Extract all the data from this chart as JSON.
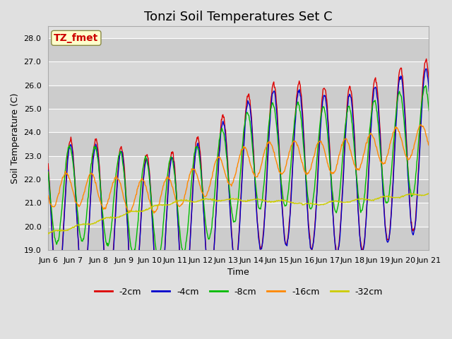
{
  "title": "Tonzi Soil Temperatures Set C",
  "xlabel": "Time",
  "ylabel": "Soil Temperature (C)",
  "ylim": [
    19.0,
    28.5
  ],
  "yticks": [
    19.0,
    20.0,
    21.0,
    22.0,
    23.0,
    24.0,
    25.0,
    26.0,
    27.0,
    28.0
  ],
  "series_colors": [
    "#dd0000",
    "#0000cc",
    "#00bb00",
    "#ff8800",
    "#cccc00"
  ],
  "series_labels": [
    "-2cm",
    "-4cm",
    "-8cm",
    "-16cm",
    "-32cm"
  ],
  "annotation_text": "TZ_fmet",
  "annotation_color": "#cc0000",
  "annotation_bg": "#ffffcc",
  "annotation_edge": "#888844",
  "bg_color": "#e0e0e0",
  "plot_bg": "#e0e0e0",
  "x_tick_labels": [
    "Jun 6",
    "Jun 7",
    "Jun 8",
    "Jun 9",
    "Jun 10",
    "Jun 11",
    "Jun 12",
    "Jun 13",
    "Jun 14",
    "Jun 15",
    "Jun 16",
    "Jun 17",
    "Jun 18",
    "Jun 19",
    "Jun 20",
    "Jun 21"
  ],
  "title_fontsize": 13,
  "label_fontsize": 9,
  "tick_fontsize": 8,
  "legend_fontsize": 9,
  "n_days": 15,
  "n_per_day": 48
}
